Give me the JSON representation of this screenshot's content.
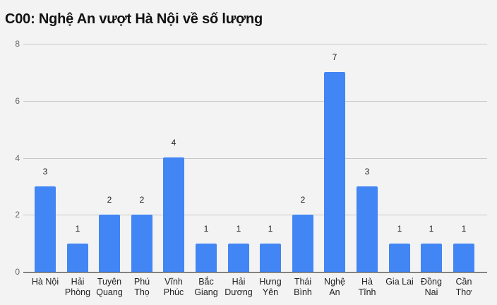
{
  "chart_data": {
    "type": "bar",
    "title": "C00: Nghệ An vượt Hà Nội về số lượng",
    "xlabel": "",
    "ylabel": "",
    "ylim": [
      0,
      8
    ],
    "yticks": [
      "0",
      "2",
      "4",
      "6",
      "8"
    ],
    "grid": true,
    "legend": null,
    "categories": [
      "Hà Nội",
      "Hải Phòng",
      "Tuyên Quang",
      "Phú Thọ",
      "Vĩnh Phúc",
      "Bắc Giang",
      "Hải Dương",
      "Hưng Yên",
      "Thái Bình",
      "Nghệ An",
      "Hà Tĩnh",
      "Gia Lai",
      "Đồng Nai",
      "Cần Thơ"
    ],
    "category_lines": [
      [
        "Hà Nội"
      ],
      [
        "Hải",
        "Phòng"
      ],
      [
        "Tuyên",
        "Quang"
      ],
      [
        "Phú",
        "Thọ"
      ],
      [
        "Vĩnh",
        "Phúc"
      ],
      [
        "Bắc",
        "Giang"
      ],
      [
        "Hải",
        "Dương"
      ],
      [
        "Hưng",
        "Yên"
      ],
      [
        "Thái",
        "Bình"
      ],
      [
        "Nghệ",
        "An"
      ],
      [
        "Hà",
        "Tĩnh"
      ],
      [
        "Gia Lai"
      ],
      [
        "Đồng",
        "Nai"
      ],
      [
        "Cần",
        "Thơ"
      ]
    ],
    "values": [
      3,
      1,
      2,
      2,
      4,
      1,
      1,
      1,
      2,
      7,
      3,
      1,
      1,
      1
    ],
    "data_labels": [
      "3",
      "1",
      "2",
      "2",
      "4",
      "1",
      "1",
      "1",
      "2",
      "7",
      "3",
      "1",
      "1",
      "1"
    ],
    "bar_color": "#4285f4"
  }
}
